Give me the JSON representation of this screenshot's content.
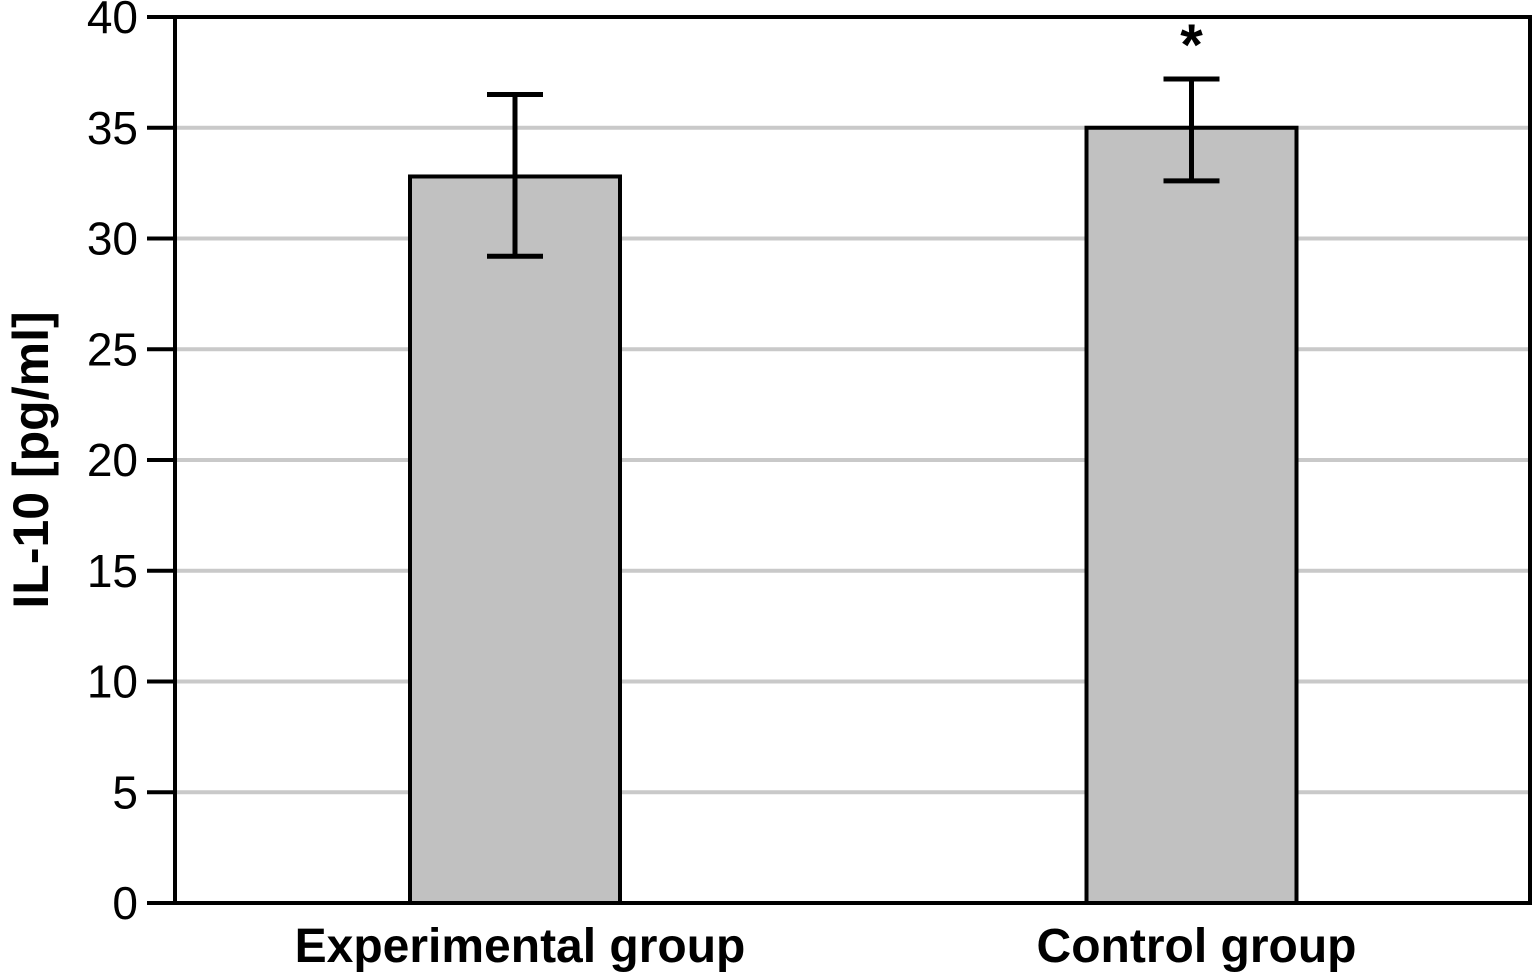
{
  "chart_data": {
    "type": "bar",
    "title": "",
    "xlabel": "",
    "ylabel": "IL-10 [pg/ml]",
    "categories": [
      "Experimental group",
      "Control group"
    ],
    "values": [
      32.8,
      35.0
    ],
    "error_up": [
      3.7,
      2.2
    ],
    "error_down": [
      3.6,
      2.4
    ],
    "ylim": [
      0,
      40
    ],
    "yticks": [
      0,
      5,
      10,
      15,
      20,
      25,
      30,
      35,
      40
    ],
    "grid": true,
    "legend": false,
    "annotations": [
      {
        "series_index": 1,
        "text": "*"
      }
    ],
    "colors": {
      "bar_fill": "#c1c1c1",
      "bar_border": "#000000",
      "gridline": "#c9c9c9",
      "axis": "#000000",
      "background": "#ffffff",
      "text": "#000000"
    }
  }
}
